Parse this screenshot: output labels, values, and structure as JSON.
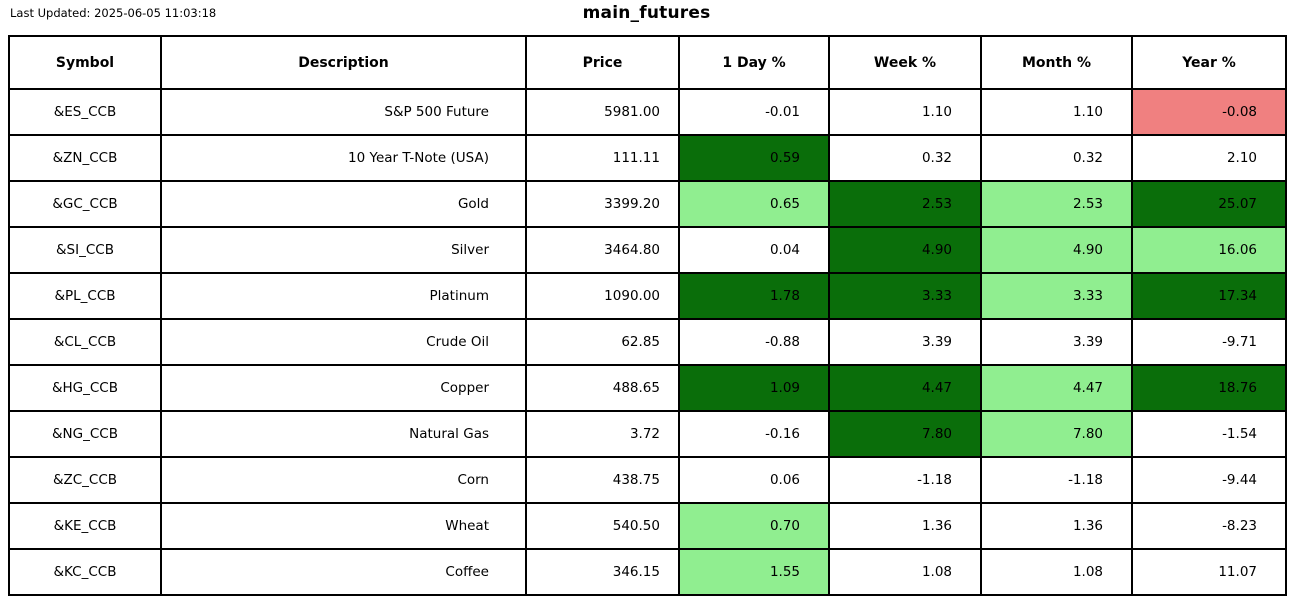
{
  "page": {
    "last_updated": "Last Updated: 2025-06-05 11:03:18",
    "title": "main_futures"
  },
  "colors": {
    "dark_green": "#0a6e0a",
    "light_green": "#90ee90",
    "light_red": "#f08080",
    "border": "#000000",
    "background": "#ffffff",
    "text": "#000000"
  },
  "chart_data": {
    "type": "table",
    "title": "main_futures",
    "last_updated": "2025-06-05 11:03:18",
    "columns": [
      "Symbol",
      "Description",
      "Price",
      "1 Day %",
      "Week %",
      "Month %",
      "Year %"
    ],
    "highlight_legend": {
      "dark": "strong positive change (dark green)",
      "light": "moderate positive change (light green)",
      "red": "negative highlight (light red)",
      "none": "no highlight (white)"
    },
    "rows": [
      {
        "symbol": "&ES_CCB",
        "description": "S&P 500 Future",
        "price": "5981.00",
        "pct": [
          {
            "value": "-0.01",
            "bg": "none"
          },
          {
            "value": "1.10",
            "bg": "none"
          },
          {
            "value": "1.10",
            "bg": "none"
          },
          {
            "value": "-0.08",
            "bg": "red"
          }
        ]
      },
      {
        "symbol": "&ZN_CCB",
        "description": "10 Year T-Note (USA)",
        "price": "111.11",
        "pct": [
          {
            "value": "0.59",
            "bg": "dark"
          },
          {
            "value": "0.32",
            "bg": "none"
          },
          {
            "value": "0.32",
            "bg": "none"
          },
          {
            "value": "2.10",
            "bg": "none"
          }
        ]
      },
      {
        "symbol": "&GC_CCB",
        "description": "Gold",
        "price": "3399.20",
        "pct": [
          {
            "value": "0.65",
            "bg": "light"
          },
          {
            "value": "2.53",
            "bg": "dark"
          },
          {
            "value": "2.53",
            "bg": "light"
          },
          {
            "value": "25.07",
            "bg": "dark"
          }
        ]
      },
      {
        "symbol": "&SI_CCB",
        "description": "Silver",
        "price": "3464.80",
        "pct": [
          {
            "value": "0.04",
            "bg": "none"
          },
          {
            "value": "4.90",
            "bg": "dark"
          },
          {
            "value": "4.90",
            "bg": "light"
          },
          {
            "value": "16.06",
            "bg": "light"
          }
        ]
      },
      {
        "symbol": "&PL_CCB",
        "description": "Platinum",
        "price": "1090.00",
        "pct": [
          {
            "value": "1.78",
            "bg": "dark"
          },
          {
            "value": "3.33",
            "bg": "dark"
          },
          {
            "value": "3.33",
            "bg": "light"
          },
          {
            "value": "17.34",
            "bg": "dark"
          }
        ]
      },
      {
        "symbol": "&CL_CCB",
        "description": "Crude Oil",
        "price": "62.85",
        "pct": [
          {
            "value": "-0.88",
            "bg": "none"
          },
          {
            "value": "3.39",
            "bg": "none"
          },
          {
            "value": "3.39",
            "bg": "none"
          },
          {
            "value": "-9.71",
            "bg": "none"
          }
        ]
      },
      {
        "symbol": "&HG_CCB",
        "description": "Copper",
        "price": "488.65",
        "pct": [
          {
            "value": "1.09",
            "bg": "dark"
          },
          {
            "value": "4.47",
            "bg": "dark"
          },
          {
            "value": "4.47",
            "bg": "light"
          },
          {
            "value": "18.76",
            "bg": "dark"
          }
        ]
      },
      {
        "symbol": "&NG_CCB",
        "description": "Natural Gas",
        "price": "3.72",
        "pct": [
          {
            "value": "-0.16",
            "bg": "none"
          },
          {
            "value": "7.80",
            "bg": "dark"
          },
          {
            "value": "7.80",
            "bg": "light"
          },
          {
            "value": "-1.54",
            "bg": "none"
          }
        ]
      },
      {
        "symbol": "&ZC_CCB",
        "description": "Corn",
        "price": "438.75",
        "pct": [
          {
            "value": "0.06",
            "bg": "none"
          },
          {
            "value": "-1.18",
            "bg": "none"
          },
          {
            "value": "-1.18",
            "bg": "none"
          },
          {
            "value": "-9.44",
            "bg": "none"
          }
        ]
      },
      {
        "symbol": "&KE_CCB",
        "description": "Wheat",
        "price": "540.50",
        "pct": [
          {
            "value": "0.70",
            "bg": "light"
          },
          {
            "value": "1.36",
            "bg": "none"
          },
          {
            "value": "1.36",
            "bg": "none"
          },
          {
            "value": "-8.23",
            "bg": "none"
          }
        ]
      },
      {
        "symbol": "&KC_CCB",
        "description": "Coffee",
        "price": "346.15",
        "pct": [
          {
            "value": "1.55",
            "bg": "light"
          },
          {
            "value": "1.08",
            "bg": "none"
          },
          {
            "value": "1.08",
            "bg": "none"
          },
          {
            "value": "11.07",
            "bg": "none"
          }
        ]
      }
    ]
  }
}
